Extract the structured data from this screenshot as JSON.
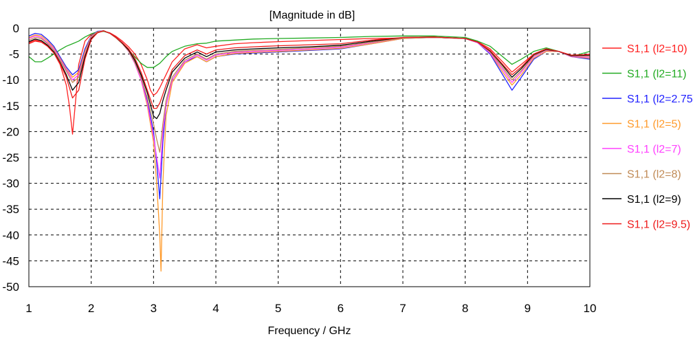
{
  "chart_data": {
    "type": "line",
    "title": "[Magnitude in dB]",
    "xlabel": "Frequency / GHz",
    "ylabel": "",
    "xlim": [
      1,
      10
    ],
    "ylim": [
      -50,
      0
    ],
    "xticks": [
      1,
      2,
      3,
      4,
      5,
      6,
      7,
      8,
      9,
      10
    ],
    "yticks": [
      0,
      -5,
      -10,
      -15,
      -20,
      -25,
      -30,
      -35,
      -40,
      -45,
      -50
    ],
    "grid": true,
    "legend_position": "right",
    "series": [
      {
        "name": "S1,1 (l2=10)",
        "color": "#ff2020",
        "x": [
          1.0,
          1.1,
          1.2,
          1.3,
          1.4,
          1.5,
          1.6,
          1.65,
          1.7,
          1.75,
          1.8,
          1.9,
          2.0,
          2.1,
          2.2,
          2.3,
          2.4,
          2.5,
          2.6,
          2.7,
          2.8,
          2.9,
          2.95,
          3.0,
          3.05,
          3.1,
          3.2,
          3.3,
          3.5,
          3.7,
          3.85,
          4.0,
          4.3,
          4.6,
          5.0,
          5.5,
          6.0,
          6.5,
          7.0,
          7.5,
          8.0,
          8.2,
          8.4,
          8.6,
          8.75,
          8.9,
          9.1,
          9.3,
          9.5,
          9.7,
          10.0
        ],
        "y": [
          -3.0,
          -2.5,
          -2.7,
          -3.5,
          -4.8,
          -7.0,
          -11.0,
          -15.0,
          -20.5,
          -14.0,
          -7.0,
          -2.5,
          -1.2,
          -0.8,
          -0.6,
          -0.9,
          -1.6,
          -2.5,
          -3.6,
          -5.0,
          -7.0,
          -10.0,
          -12.0,
          -13.0,
          -12.5,
          -11.5,
          -9.0,
          -6.5,
          -4.0,
          -3.2,
          -3.8,
          -3.5,
          -3.0,
          -2.8,
          -2.6,
          -2.4,
          -2.2,
          -2.0,
          -1.9,
          -1.8,
          -2.0,
          -2.6,
          -4.0,
          -6.5,
          -8.5,
          -7.0,
          -5.0,
          -4.0,
          -4.5,
          -5.5,
          -5.0
        ]
      },
      {
        "name": "S1,1 (l2=11)",
        "color": "#22aa22",
        "x": [
          1.0,
          1.1,
          1.2,
          1.3,
          1.4,
          1.5,
          1.6,
          1.7,
          1.8,
          1.9,
          2.0,
          2.1,
          2.2,
          2.3,
          2.4,
          2.5,
          2.6,
          2.7,
          2.8,
          2.9,
          3.0,
          3.1,
          3.2,
          3.3,
          3.5,
          3.7,
          3.85,
          4.0,
          4.3,
          4.6,
          5.0,
          5.5,
          6.0,
          6.5,
          7.0,
          7.5,
          8.0,
          8.2,
          8.4,
          8.6,
          8.75,
          8.9,
          9.1,
          9.3,
          9.5,
          9.7,
          10.0
        ],
        "y": [
          -5.5,
          -6.5,
          -6.5,
          -5.8,
          -5.0,
          -4.2,
          -3.5,
          -3.0,
          -2.5,
          -1.7,
          -1.1,
          -0.7,
          -0.6,
          -1.0,
          -1.8,
          -3.0,
          -4.2,
          -5.5,
          -6.8,
          -7.6,
          -7.6,
          -6.8,
          -5.5,
          -4.5,
          -3.5,
          -3.0,
          -2.9,
          -2.5,
          -2.3,
          -2.1,
          -2.0,
          -1.9,
          -1.8,
          -1.6,
          -1.5,
          -1.5,
          -1.8,
          -2.5,
          -3.5,
          -5.5,
          -7.0,
          -6.0,
          -4.5,
          -3.8,
          -4.5,
          -5.5,
          -4.5
        ]
      },
      {
        "name": "S1,1 (l2=2.75)",
        "color": "#2020ff",
        "x": [
          1.0,
          1.1,
          1.2,
          1.3,
          1.4,
          1.5,
          1.6,
          1.7,
          1.8,
          1.9,
          2.0,
          2.1,
          2.2,
          2.3,
          2.4,
          2.5,
          2.6,
          2.7,
          2.8,
          2.9,
          3.0,
          3.05,
          3.1,
          3.15,
          3.2,
          3.3,
          3.5,
          3.7,
          3.85,
          4.0,
          4.3,
          4.6,
          5.0,
          5.5,
          6.0,
          6.5,
          7.0,
          7.5,
          8.0,
          8.2,
          8.4,
          8.6,
          8.75,
          8.9,
          9.1,
          9.3,
          9.5,
          9.7,
          10.0
        ],
        "y": [
          -1.5,
          -1.0,
          -1.2,
          -2.2,
          -3.5,
          -5.5,
          -7.5,
          -9.0,
          -8.0,
          -4.0,
          -1.5,
          -0.6,
          -0.5,
          -1.0,
          -1.8,
          -2.8,
          -4.2,
          -6.5,
          -9.5,
          -14.0,
          -20.0,
          -26.0,
          -33.0,
          -22.0,
          -15.0,
          -10.0,
          -6.5,
          -5.5,
          -6.5,
          -5.5,
          -5.0,
          -4.8,
          -4.6,
          -4.3,
          -4.0,
          -3.0,
          -2.0,
          -1.8,
          -2.0,
          -2.8,
          -5.0,
          -9.0,
          -12.0,
          -9.5,
          -6.0,
          -4.5,
          -4.5,
          -5.5,
          -6.0
        ]
      },
      {
        "name": "S1,1 (l2=5)",
        "color": "#ff9a2a",
        "x": [
          1.0,
          1.1,
          1.2,
          1.3,
          1.4,
          1.5,
          1.6,
          1.7,
          1.8,
          1.9,
          2.0,
          2.1,
          2.2,
          2.3,
          2.4,
          2.5,
          2.6,
          2.7,
          2.8,
          2.9,
          3.0,
          3.05,
          3.1,
          3.12,
          3.15,
          3.2,
          3.3,
          3.5,
          3.7,
          3.85,
          4.0,
          4.3,
          4.6,
          5.0,
          5.5,
          6.0,
          6.5,
          7.0,
          7.5,
          8.0,
          8.2,
          8.4,
          8.6,
          8.75,
          8.9,
          9.1,
          9.3,
          9.5,
          9.7,
          10.0
        ],
        "y": [
          -1.8,
          -1.3,
          -1.5,
          -2.5,
          -3.8,
          -5.8,
          -7.8,
          -9.5,
          -8.5,
          -4.5,
          -1.6,
          -0.7,
          -0.5,
          -1.0,
          -1.9,
          -3.0,
          -4.5,
          -6.8,
          -10.0,
          -15.0,
          -22.0,
          -30.0,
          -40.0,
          -47.0,
          -30.0,
          -17.0,
          -10.5,
          -6.8,
          -5.5,
          -6.5,
          -5.5,
          -4.9,
          -4.7,
          -4.5,
          -4.2,
          -3.9,
          -3.0,
          -2.0,
          -1.8,
          -2.0,
          -2.8,
          -4.8,
          -8.5,
          -11.0,
          -9.0,
          -5.8,
          -4.5,
          -4.5,
          -5.5,
          -5.8
        ]
      },
      {
        "name": "S1,1 (l2=7)",
        "color": "#ff40ff",
        "x": [
          1.0,
          1.1,
          1.2,
          1.3,
          1.4,
          1.5,
          1.6,
          1.7,
          1.8,
          1.9,
          2.0,
          2.1,
          2.2,
          2.3,
          2.4,
          2.5,
          2.6,
          2.7,
          2.8,
          2.9,
          3.0,
          3.05,
          3.1,
          3.15,
          3.2,
          3.3,
          3.5,
          3.7,
          3.85,
          4.0,
          4.3,
          4.6,
          5.0,
          5.5,
          6.0,
          6.5,
          7.0,
          7.5,
          8.0,
          8.2,
          8.4,
          8.6,
          8.75,
          8.9,
          9.1,
          9.3,
          9.5,
          9.7,
          10.0
        ],
        "y": [
          -2.0,
          -1.5,
          -1.8,
          -2.8,
          -4.0,
          -6.0,
          -8.0,
          -10.0,
          -9.0,
          -5.0,
          -1.8,
          -0.8,
          -0.5,
          -1.0,
          -1.9,
          -3.0,
          -4.5,
          -6.8,
          -10.0,
          -14.5,
          -21.0,
          -25.0,
          -29.0,
          -20.0,
          -15.0,
          -10.0,
          -6.5,
          -5.2,
          -6.2,
          -5.2,
          -4.7,
          -4.5,
          -4.3,
          -4.0,
          -3.7,
          -2.8,
          -1.9,
          -1.8,
          -2.0,
          -2.8,
          -4.8,
          -8.0,
          -10.5,
          -8.5,
          -5.5,
          -4.3,
          -4.5,
          -5.5,
          -5.6
        ]
      },
      {
        "name": "S1,1 (l2=8)",
        "color": "#c08a55",
        "x": [
          1.0,
          1.1,
          1.2,
          1.3,
          1.4,
          1.5,
          1.6,
          1.7,
          1.8,
          1.9,
          2.0,
          2.1,
          2.2,
          2.3,
          2.4,
          2.5,
          2.6,
          2.7,
          2.8,
          2.9,
          3.0,
          3.05,
          3.1,
          3.15,
          3.2,
          3.3,
          3.5,
          3.7,
          3.85,
          4.0,
          4.3,
          4.6,
          5.0,
          5.5,
          6.0,
          6.5,
          7.0,
          7.5,
          8.0,
          8.2,
          8.4,
          8.6,
          8.75,
          8.9,
          9.1,
          9.3,
          9.5,
          9.7,
          10.0
        ],
        "y": [
          -2.3,
          -1.8,
          -2.0,
          -3.0,
          -4.3,
          -6.2,
          -8.3,
          -10.5,
          -9.5,
          -5.2,
          -1.9,
          -0.8,
          -0.5,
          -1.0,
          -1.9,
          -3.0,
          -4.4,
          -6.6,
          -9.5,
          -13.5,
          -18.5,
          -21.5,
          -24.0,
          -18.5,
          -14.0,
          -9.5,
          -6.2,
          -5.0,
          -6.0,
          -5.0,
          -4.5,
          -4.3,
          -4.1,
          -3.8,
          -3.5,
          -2.7,
          -1.9,
          -1.8,
          -2.0,
          -2.7,
          -4.6,
          -7.6,
          -10.0,
          -8.2,
          -5.3,
          -4.2,
          -4.5,
          -5.4,
          -5.4
        ]
      },
      {
        "name": "S1,1 (l2=9)",
        "color": "#000000",
        "x": [
          1.0,
          1.1,
          1.2,
          1.3,
          1.4,
          1.5,
          1.6,
          1.7,
          1.8,
          1.9,
          2.0,
          2.1,
          2.2,
          2.3,
          2.4,
          2.5,
          2.6,
          2.7,
          2.8,
          2.9,
          3.0,
          3.05,
          3.1,
          3.15,
          3.2,
          3.3,
          3.5,
          3.7,
          3.85,
          4.0,
          4.3,
          4.6,
          5.0,
          5.5,
          6.0,
          6.5,
          7.0,
          7.5,
          8.0,
          8.2,
          8.4,
          8.6,
          8.75,
          8.9,
          9.1,
          9.3,
          9.5,
          9.7,
          10.0
        ],
        "y": [
          -2.6,
          -2.1,
          -2.4,
          -3.3,
          -4.6,
          -6.6,
          -9.0,
          -12.0,
          -10.5,
          -5.5,
          -2.0,
          -0.9,
          -0.5,
          -1.0,
          -1.8,
          -2.9,
          -4.2,
          -6.2,
          -9.0,
          -12.5,
          -17.0,
          -17.5,
          -16.5,
          -14.0,
          -12.0,
          -8.5,
          -5.8,
          -4.6,
          -5.5,
          -4.6,
          -4.2,
          -4.0,
          -3.8,
          -3.6,
          -3.3,
          -2.5,
          -1.8,
          -1.7,
          -2.0,
          -2.7,
          -4.4,
          -7.2,
          -9.5,
          -7.8,
          -5.1,
          -4.1,
          -4.5,
          -5.3,
          -5.2
        ]
      },
      {
        "name": "S1,1 (l2=9.5)",
        "color": "#ee1a1a",
        "x": [
          1.0,
          1.1,
          1.2,
          1.3,
          1.4,
          1.5,
          1.6,
          1.7,
          1.8,
          1.9,
          2.0,
          2.1,
          2.2,
          2.3,
          2.4,
          2.5,
          2.6,
          2.7,
          2.8,
          2.9,
          3.0,
          3.05,
          3.1,
          3.15,
          3.2,
          3.3,
          3.5,
          3.7,
          3.85,
          4.0,
          4.3,
          4.6,
          5.0,
          5.5,
          6.0,
          6.5,
          7.0,
          7.5,
          8.0,
          8.2,
          8.4,
          8.6,
          8.75,
          8.9,
          9.1,
          9.3,
          9.5,
          9.7,
          10.0
        ],
        "y": [
          -2.8,
          -2.3,
          -2.6,
          -3.5,
          -4.8,
          -6.8,
          -9.5,
          -13.5,
          -12.0,
          -6.0,
          -2.2,
          -0.9,
          -0.5,
          -1.0,
          -1.8,
          -2.8,
          -4.0,
          -5.8,
          -8.5,
          -12.0,
          -15.5,
          -15.5,
          -14.5,
          -12.8,
          -11.0,
          -8.0,
          -5.3,
          -4.2,
          -5.0,
          -4.2,
          -3.8,
          -3.6,
          -3.4,
          -3.2,
          -3.0,
          -2.3,
          -1.8,
          -1.7,
          -2.0,
          -2.7,
          -4.3,
          -7.0,
          -9.0,
          -7.5,
          -5.0,
          -4.0,
          -4.5,
          -5.2,
          -5.1
        ]
      }
    ]
  }
}
